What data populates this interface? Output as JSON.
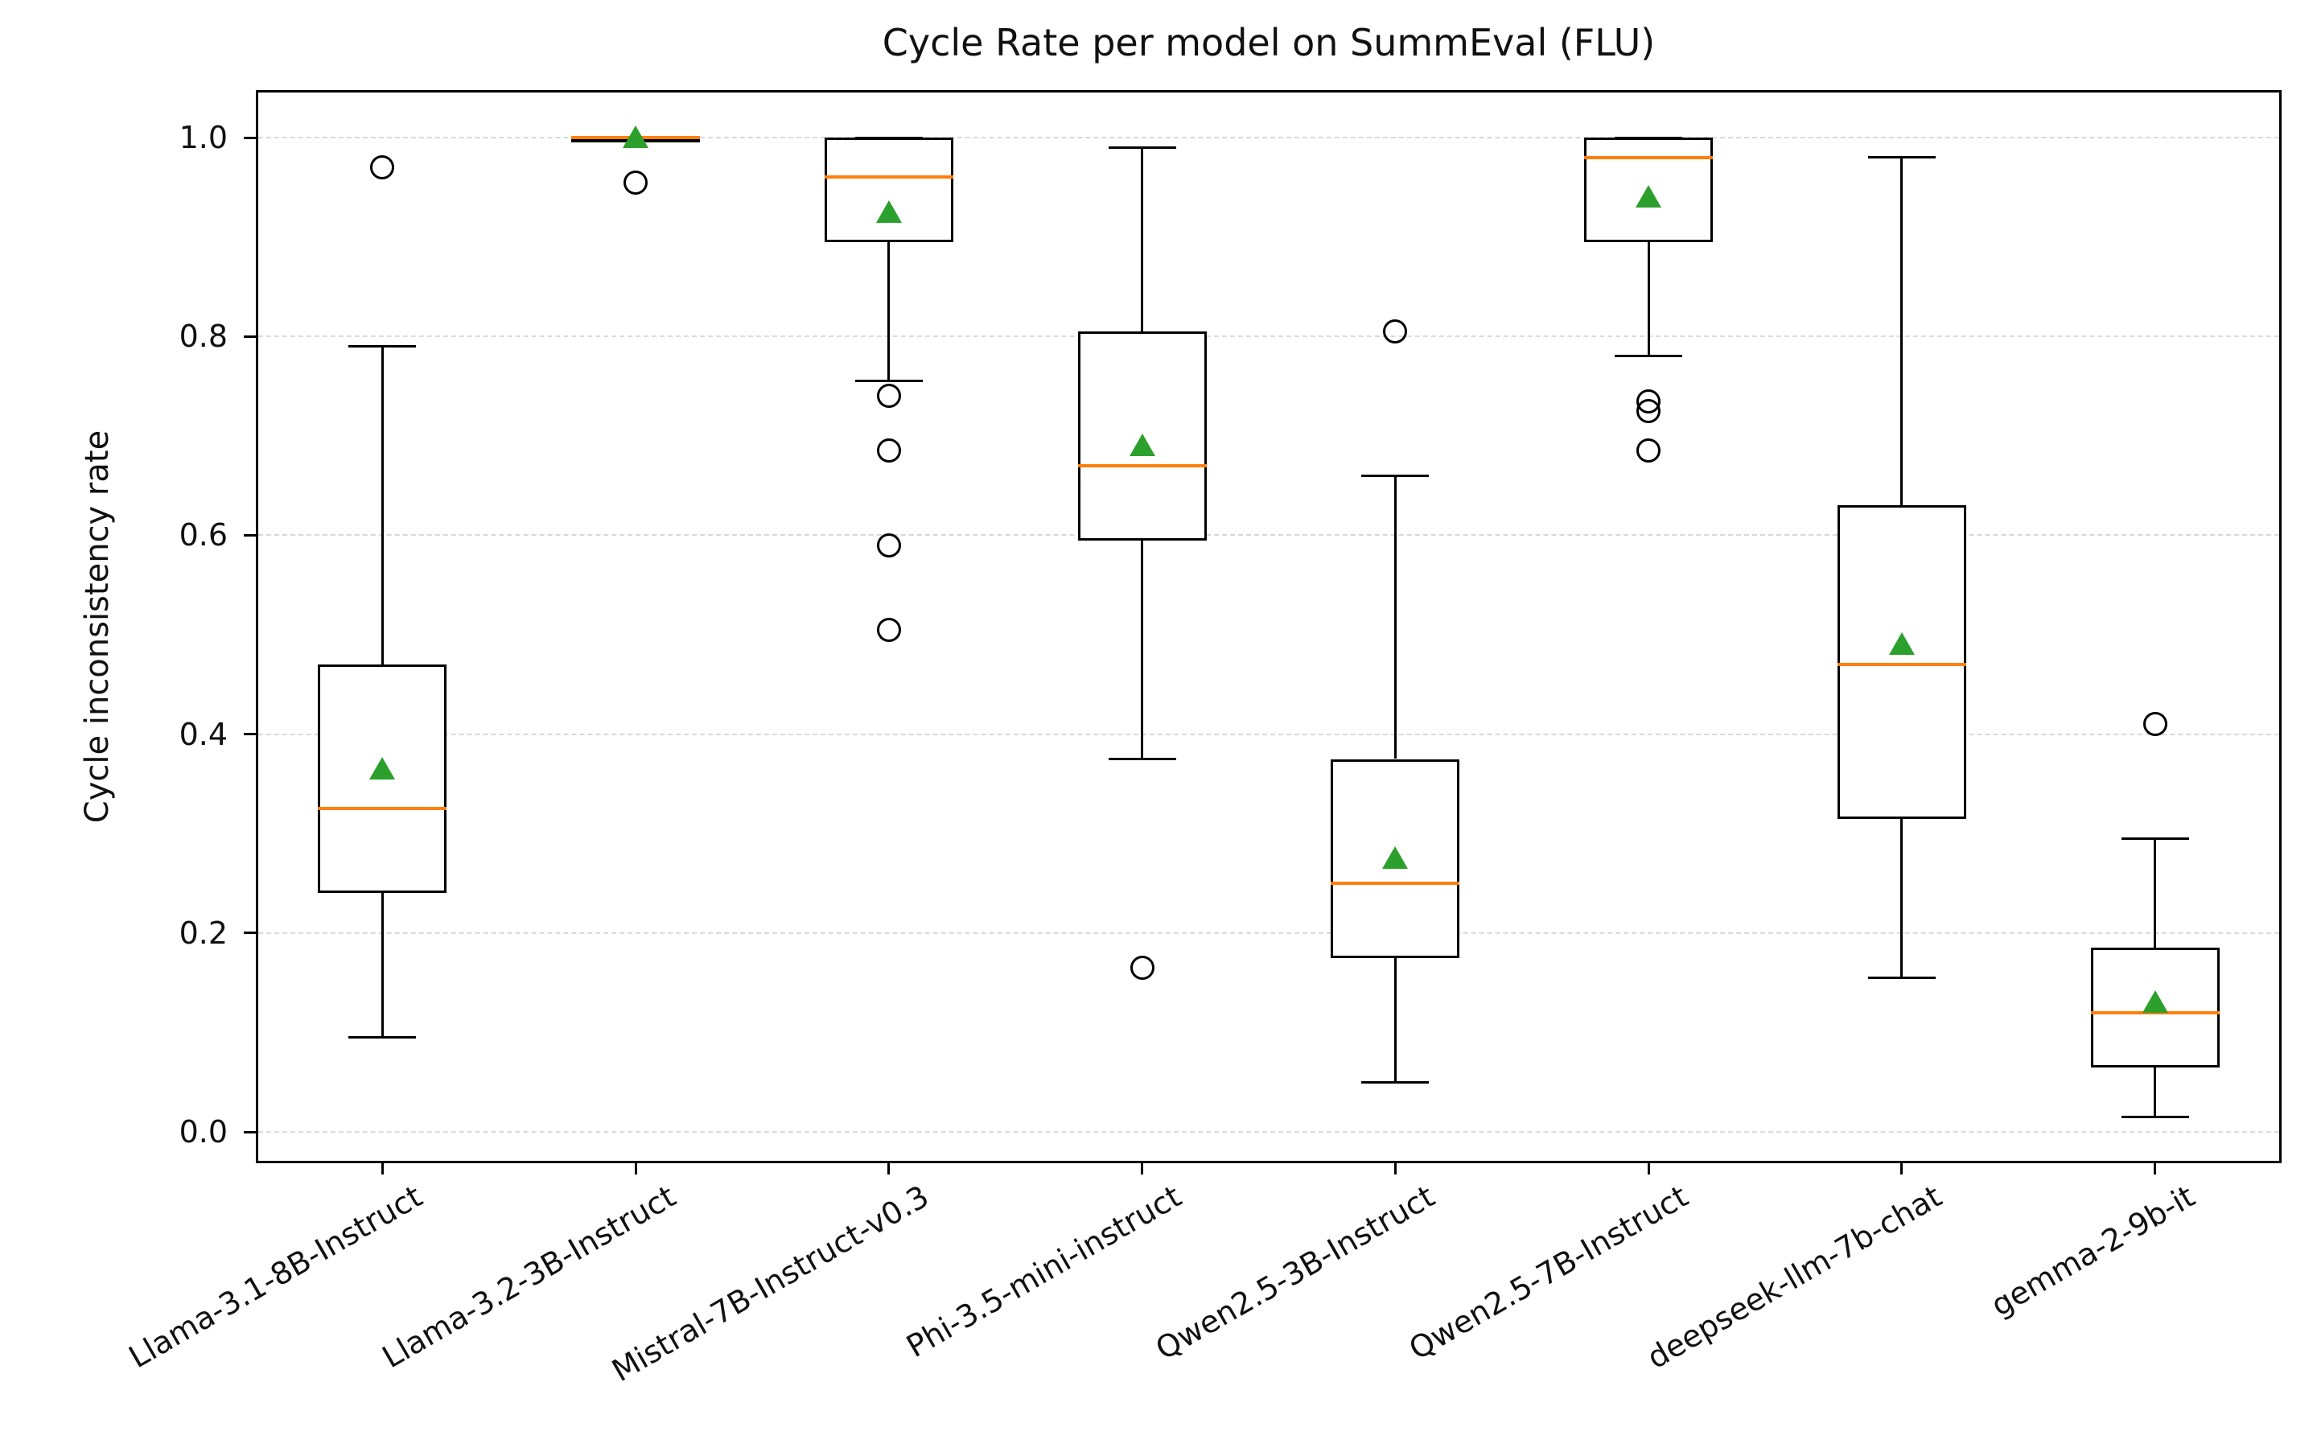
{
  "chart_data": {
    "type": "boxplot",
    "title": "Cycle Rate per model on SummEval (FLU)",
    "xlabel": "",
    "ylabel": "Cycle inconsistency rate",
    "yticks": [
      "0.0",
      "0.2",
      "0.4",
      "0.6",
      "0.8",
      "1.0"
    ],
    "ylim": [
      -0.03,
      1.05
    ],
    "grid": "horizontal-dashed",
    "legend": false,
    "colors": {
      "box_edge": "#000000",
      "median": "#ff7f0e",
      "mean": "#2ca02c",
      "grid": "#d9d9d9",
      "background": "#ffffff"
    },
    "categories": [
      "Llama-3.1-8B-Instruct",
      "Llama-3.2-3B-Instruct",
      "Mistral-7B-Instruct-v0.3",
      "Phi-3.5-mini-instruct",
      "Qwen2.5-3B-Instruct",
      "Qwen2.5-7B-Instruct",
      "deepseek-llm-7b-chat",
      "gemma-2-9b-it"
    ],
    "series": [
      {
        "model": "Llama-3.1-8B-Instruct",
        "whisker_low": 0.095,
        "q1": 0.24,
        "median": 0.325,
        "mean": 0.365,
        "q3": 0.47,
        "whisker_high": 0.79,
        "outliers": [
          0.97
        ]
      },
      {
        "model": "Llama-3.2-3B-Instruct",
        "whisker_low": 1.0,
        "q1": 1.0,
        "median": 1.0,
        "mean": 1.0,
        "q3": 1.0,
        "whisker_high": 1.0,
        "outliers": [
          0.955
        ]
      },
      {
        "model": "Mistral-7B-Instruct-v0.3",
        "whisker_low": 0.755,
        "q1": 0.895,
        "median": 0.96,
        "mean": 0.925,
        "q3": 1.0,
        "whisker_high": 1.0,
        "outliers": [
          0.74,
          0.685,
          0.59,
          0.505
        ]
      },
      {
        "model": "Phi-3.5-mini-instruct",
        "whisker_low": 0.375,
        "q1": 0.595,
        "median": 0.67,
        "mean": 0.69,
        "q3": 0.805,
        "whisker_high": 0.99,
        "outliers": [
          0.165
        ]
      },
      {
        "model": "Qwen2.5-3B-Instruct",
        "whisker_low": 0.05,
        "q1": 0.175,
        "median": 0.25,
        "mean": 0.275,
        "q3": 0.375,
        "whisker_high": 0.66,
        "outliers": [
          0.805
        ]
      },
      {
        "model": "Qwen2.5-7B-Instruct",
        "whisker_low": 0.78,
        "q1": 0.895,
        "median": 0.98,
        "mean": 0.94,
        "q3": 1.0,
        "whisker_high": 1.0,
        "outliers": [
          0.735,
          0.725,
          0.685
        ]
      },
      {
        "model": "deepseek-llm-7b-chat",
        "whisker_low": 0.155,
        "q1": 0.315,
        "median": 0.47,
        "mean": 0.49,
        "q3": 0.63,
        "whisker_high": 0.98,
        "outliers": []
      },
      {
        "model": "gemma-2-9b-it",
        "whisker_low": 0.015,
        "q1": 0.065,
        "median": 0.12,
        "mean": 0.13,
        "q3": 0.185,
        "whisker_high": 0.295,
        "outliers": [
          0.41
        ]
      }
    ]
  }
}
